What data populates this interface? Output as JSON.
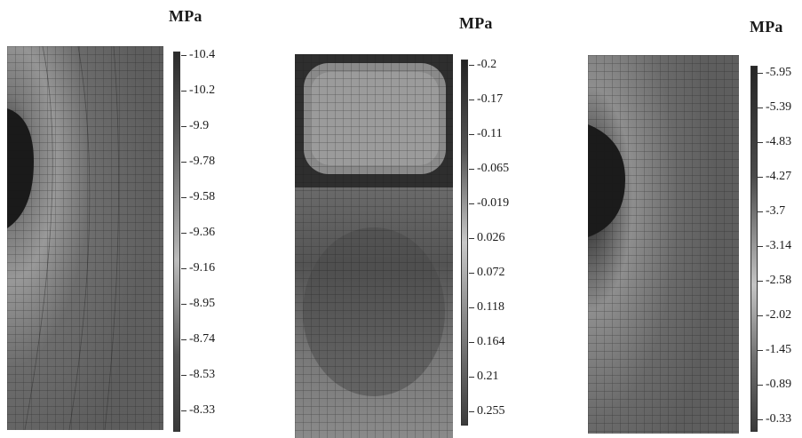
{
  "panels": [
    {
      "unit": "MPa",
      "colorbar": {
        "top_color": "#2b2b2b",
        "mid_color": "#bdbdbd",
        "bottom_color": "#3a3a3a"
      },
      "ticks": [
        "-10.4",
        "-10.2",
        "-9.9",
        "-9.78",
        "-9.58",
        "-9.36",
        "-9.16",
        "-8.95",
        "-8.74",
        "-8.53",
        "-8.33"
      ]
    },
    {
      "unit": "MPa",
      "colorbar": {
        "top_color": "#222222",
        "mid_color": "#c8c8c8",
        "bottom_color": "#3c3c3c"
      },
      "ticks": [
        "-0.2",
        "-0.17",
        "-0.11",
        "-0.065",
        "-0.019",
        "0.026",
        "0.072",
        "0.118",
        "0.164",
        "0.21",
        "0.255"
      ]
    },
    {
      "unit": "MPa",
      "colorbar": {
        "top_color": "#262626",
        "mid_color": "#c4c4c4",
        "bottom_color": "#3a3a3a"
      },
      "ticks": [
        "-5.95",
        "-5.39",
        "-4.83",
        "-4.27",
        "-3.7",
        "-3.14",
        "-2.58",
        "-2.02",
        "-1.45",
        "-0.89",
        "-0.33"
      ]
    }
  ],
  "colors": {
    "field_dark": "#2a2a2a",
    "field_mid": "#5a5a5a",
    "field_light": "#9a9a9a",
    "grid": "#151515"
  }
}
